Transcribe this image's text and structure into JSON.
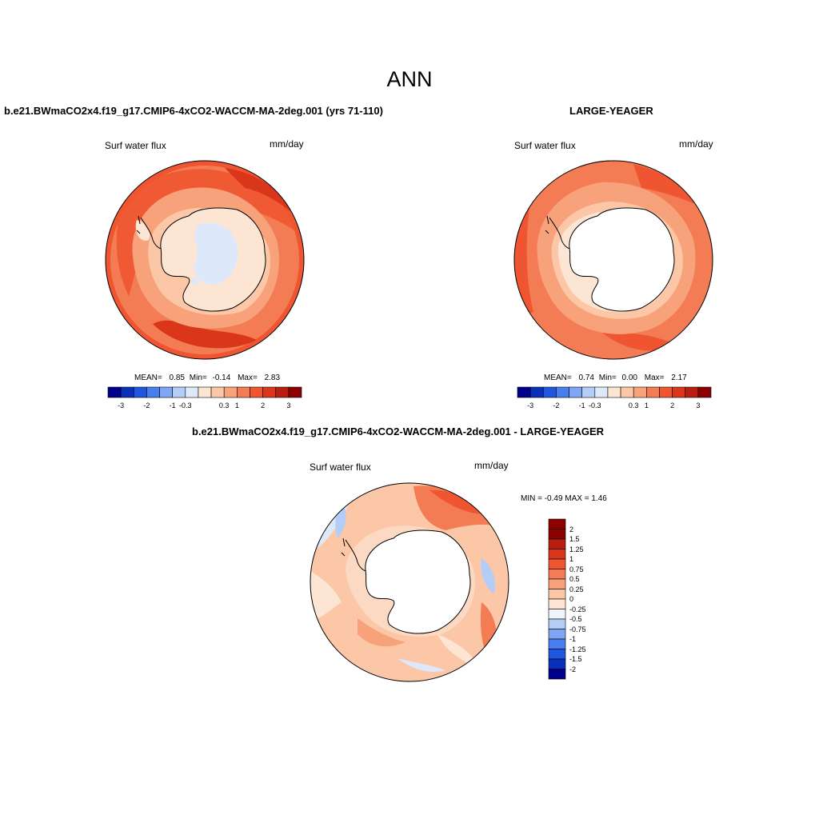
{
  "title": "ANN",
  "panels": [
    {
      "case_title": "b.e21.BWmaCO2x4.f19_g17.CMIP6-4xCO2-WACCM-MA-2deg.001 (yrs 71-110)",
      "variable": "Surf water flux",
      "units": "mm/day",
      "stats": {
        "mean_label": "MEAN=",
        "mean": "0.85",
        "min_label": "Min=",
        "min": "-0.14",
        "max_label": "Max=",
        "max": "2.83"
      },
      "colorbar_ticks": [
        "-3",
        "-2",
        "-1",
        "-0.3",
        "0.3",
        "1",
        "2",
        "3"
      ]
    },
    {
      "case_title": "LARGE-YEAGER",
      "variable": "Surf water flux",
      "units": "mm/day",
      "stats": {
        "mean_label": "MEAN=",
        "mean": "0.74",
        "min_label": "Min=",
        "min": "0.00",
        "max_label": "Max=",
        "max": "2.17"
      },
      "colorbar_ticks": [
        "-3",
        "-2",
        "-1",
        "-0.3",
        "0.3",
        "1",
        "2",
        "3"
      ]
    },
    {
      "case_title": "b.e21.BWmaCO2x4.f19_g17.CMIP6-4xCO2-WACCM-MA-2deg.001 - LARGE-YEAGER",
      "variable": "Surf water flux",
      "units": "mm/day",
      "stats_text": "MIN = -0.49 MAX = 1.46",
      "colorbar_ticks": [
        "2",
        "1.5",
        "1.25",
        "1",
        "0.75",
        "0.5",
        "0.25",
        "0",
        "-0.25",
        "-0.5",
        "-0.75",
        "-1",
        "-1.25",
        "-1.5",
        "-2"
      ]
    }
  ],
  "colors": {
    "abs_colorbar": [
      "#00008b",
      "#0a2fb8",
      "#1f56dd",
      "#4a7ef0",
      "#7fa6f4",
      "#b4cdf6",
      "#dde9fa",
      "#fde5d3",
      "#fbc7a7",
      "#f8a27c",
      "#f47c55",
      "#ee5530",
      "#d9361a",
      "#b81f0f",
      "#8b0000"
    ],
    "diff_colorbar": [
      "#8b0000",
      "#b81f0f",
      "#d9361a",
      "#ee5530",
      "#f47c55",
      "#f8a27c",
      "#fbc7a7",
      "#fde5d3",
      "#f0f4fb",
      "#b4cdf6",
      "#7fa6f4",
      "#4a7ef0",
      "#1f56dd",
      "#0a2fb8",
      "#00008b"
    ],
    "land": "#ffffff",
    "coast": "#000000"
  }
}
